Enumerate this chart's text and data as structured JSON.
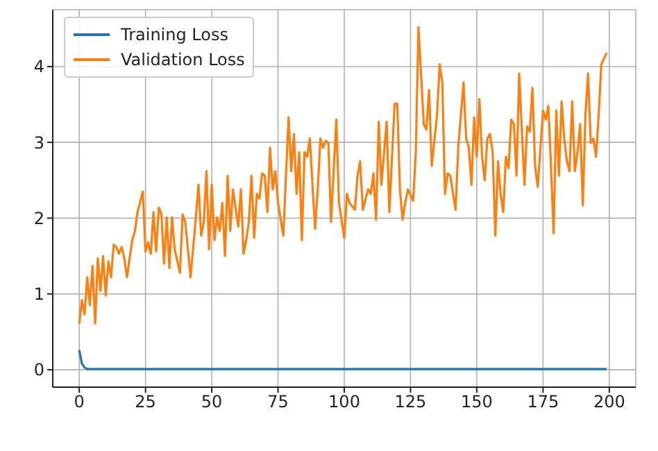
{
  "chart_data": {
    "type": "line",
    "xlim": [
      -10,
      210
    ],
    "xticks": [
      0,
      25,
      50,
      75,
      100,
      125,
      150,
      175,
      200
    ],
    "ylim": [
      -0.23,
      4.75
    ],
    "yticks": [
      0,
      1,
      2,
      3,
      4
    ],
    "grid": true,
    "legend": "top left",
    "series": [
      {
        "name": "Training Loss",
        "color": "#1f77b4",
        "x": [
          0,
          1,
          2,
          3,
          199
        ],
        "values": [
          0.26,
          0.08,
          0.03,
          0.01,
          0.01
        ]
      },
      {
        "name": "Validation Loss",
        "color": "#ff7f0e",
        "x": [
          0,
          1,
          2,
          3,
          4,
          5,
          6,
          7,
          8,
          9,
          10,
          11,
          12,
          13,
          14,
          15,
          16,
          17,
          18,
          19,
          20,
          21,
          22,
          24,
          25,
          26,
          27,
          28,
          29,
          30,
          31,
          32,
          33,
          34,
          35,
          36,
          38,
          39,
          40,
          41,
          42,
          44,
          45,
          46,
          47,
          48,
          49,
          50,
          51,
          52,
          53,
          54,
          55,
          56,
          57,
          58,
          60,
          61,
          62,
          63,
          64,
          65,
          66,
          67,
          68,
          69,
          70,
          71,
          72,
          73,
          74,
          75,
          77,
          78,
          79,
          80,
          81,
          82,
          83,
          84,
          85,
          86,
          87,
          88,
          89,
          90,
          91,
          92,
          93,
          94,
          95,
          97,
          98,
          100,
          101,
          102,
          104,
          105,
          106,
          107,
          109,
          110,
          111,
          112,
          113,
          114,
          116,
          117,
          119,
          120,
          121,
          122,
          123,
          124,
          126,
          127,
          128,
          130,
          131,
          132,
          133,
          135,
          136,
          137,
          138,
          139,
          140,
          142,
          143,
          145,
          146,
          147,
          148,
          149,
          150,
          151,
          152,
          153,
          154,
          155,
          156,
          157,
          158,
          159,
          160,
          161,
          162,
          163,
          164,
          165,
          166,
          167,
          168,
          169,
          170,
          171,
          172,
          173,
          175,
          176,
          177,
          178,
          179,
          180,
          181,
          182,
          183,
          184,
          185,
          186,
          187,
          188,
          189,
          190,
          191,
          192,
          193,
          194,
          195,
          196,
          197,
          199
        ],
        "values": [
          0.61,
          0.92,
          0.73,
          1.22,
          0.85,
          1.37,
          0.61,
          1.47,
          1.04,
          1.5,
          0.98,
          1.43,
          1.22,
          1.65,
          1.62,
          1.53,
          1.62,
          1.47,
          1.22,
          1.47,
          1.71,
          1.83,
          2.08,
          2.35,
          1.56,
          1.68,
          1.53,
          2.08,
          1.56,
          2.14,
          2.05,
          1.4,
          2.01,
          1.34,
          2.01,
          1.59,
          1.28,
          2.05,
          1.95,
          1.59,
          1.22,
          2.01,
          2.44,
          1.77,
          1.95,
          2.62,
          1.59,
          2.44,
          1.71,
          2.01,
          1.83,
          2.2,
          1.5,
          2.56,
          1.83,
          2.38,
          1.89,
          2.38,
          1.53,
          1.71,
          1.95,
          2.56,
          1.74,
          2.32,
          2.26,
          2.59,
          2.56,
          2.08,
          2.93,
          2.38,
          2.62,
          2.2,
          1.77,
          2.56,
          3.33,
          2.62,
          3.11,
          2.32,
          2.87,
          1.71,
          2.87,
          2.81,
          3.05,
          2.44,
          1.86,
          2.38,
          3.05,
          2.93,
          3.02,
          2.99,
          1.95,
          3.3,
          2.2,
          1.74,
          2.32,
          2.2,
          2.11,
          2.56,
          2.75,
          2.11,
          2.38,
          2.32,
          2.59,
          1.98,
          3.27,
          2.44,
          3.27,
          2.08,
          3.51,
          3.51,
          2.38,
          1.98,
          2.2,
          2.38,
          2.23,
          2.87,
          4.52,
          3.24,
          3.17,
          3.69,
          2.69,
          3.36,
          4.03,
          3.79,
          2.32,
          2.59,
          2.56,
          2.11,
          2.93,
          3.79,
          3.05,
          2.93,
          2.44,
          3.33,
          2.81,
          3.57,
          2.81,
          2.5,
          3.05,
          3.11,
          2.87,
          1.77,
          2.75,
          2.32,
          2.08,
          2.81,
          2.66,
          3.3,
          3.24,
          2.56,
          3.91,
          3.17,
          2.44,
          3.21,
          3.14,
          3.72,
          2.69,
          2.41,
          3.42,
          3.3,
          3.48,
          2.69,
          1.8,
          3.42,
          2.56,
          3.54,
          3.05,
          2.75,
          2.62,
          3.54,
          2.62,
          2.87,
          3.24,
          2.17,
          3.36,
          3.91,
          2.99,
          3.05,
          2.81,
          3.36,
          4.03,
          4.18
        ]
      }
    ]
  }
}
